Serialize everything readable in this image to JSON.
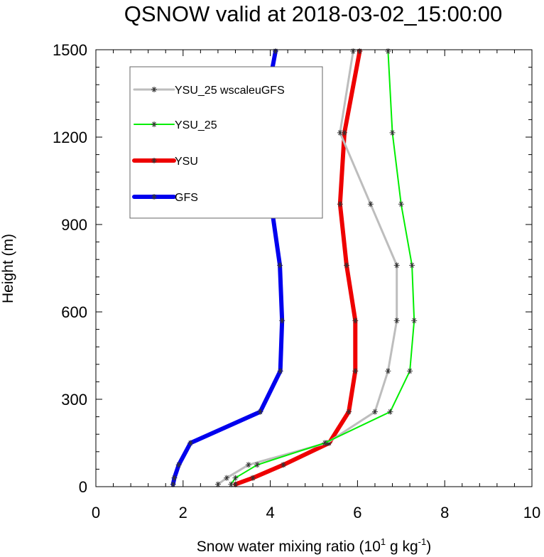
{
  "chart_data": {
    "type": "line",
    "title": "QSNOW valid at 2018-03-02_15:00:00",
    "xlabel": "Snow water mixing ratio (10",
    "xlabel_sup1": "1",
    "xlabel_mid": " g kg",
    "xlabel_sup2": "-1",
    "xlabel_end": ")",
    "ylabel": "Height (m)",
    "xlim": [
      0,
      10
    ],
    "ylim": [
      0,
      1500
    ],
    "x_ticks": [
      0,
      2,
      4,
      6,
      8,
      10
    ],
    "y_ticks": [
      0,
      300,
      600,
      900,
      1200,
      1500
    ],
    "legend_position": "top-left",
    "series": [
      {
        "name": "YSU_25 wscaleuGFS",
        "color": "#bdbdbd",
        "width": 3,
        "marker": "asterisk",
        "x": [
          2.8,
          3.0,
          3.5,
          5.3,
          6.4,
          6.7,
          6.9,
          6.9,
          6.3,
          5.6,
          5.9
        ],
        "y": [
          8,
          30,
          75,
          150,
          257,
          397,
          570,
          760,
          970,
          1215,
          1495
        ]
      },
      {
        "name": "YSU_25",
        "color": "#00ee00",
        "width": 2,
        "marker": "asterisk",
        "x": [
          3.1,
          3.2,
          3.7,
          5.25,
          6.75,
          7.2,
          7.3,
          7.25,
          7.0,
          6.8,
          6.7
        ],
        "y": [
          8,
          30,
          75,
          150,
          257,
          397,
          570,
          760,
          970,
          1215,
          1495
        ]
      },
      {
        "name": "YSU",
        "color": "#ee0000",
        "width": 6,
        "marker": "asterisk",
        "x": [
          3.2,
          3.6,
          4.3,
          5.35,
          5.8,
          5.95,
          5.95,
          5.75,
          5.6,
          5.7,
          6.05
        ],
        "y": [
          8,
          30,
          75,
          150,
          257,
          397,
          570,
          760,
          970,
          1215,
          1495
        ]
      },
      {
        "name": "GFS",
        "color": "#0000ee",
        "width": 6,
        "marker": "asterisk",
        "x": [
          1.77,
          1.8,
          1.9,
          2.17,
          3.77,
          4.23,
          4.27,
          4.22,
          4.02,
          3.77,
          4.12
        ],
        "y": [
          8,
          30,
          75,
          150,
          257,
          397,
          570,
          760,
          970,
          1215,
          1495
        ]
      }
    ]
  }
}
